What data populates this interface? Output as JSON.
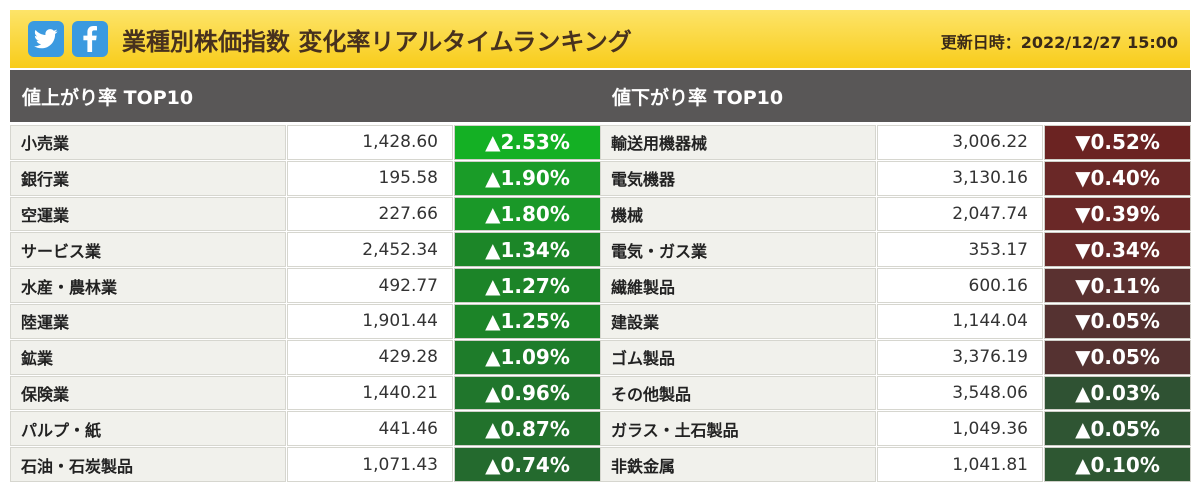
{
  "header": {
    "title": "業種別株価指数 変化率リアルタイムランキング",
    "updated_label": "更新日時：",
    "updated_value": "2022/12/27 15:00"
  },
  "colors": {
    "header_bg": "#f8cc1a",
    "panel_header_bg": "#595757",
    "name_cell_bg": "#f1f1ec",
    "value_cell_bg": "#ffffff",
    "social_button_bg": "#3b9ae0"
  },
  "icons": [
    "twitter-icon",
    "facebook-icon"
  ],
  "gainers": {
    "title": "値上がり率 TOP10",
    "rows": [
      {
        "name": "小売業",
        "value": "1,428.60",
        "change": "▲2.53%",
        "color": "#14b024"
      },
      {
        "name": "銀行業",
        "value": "195.58",
        "change": "▲1.90%",
        "color": "#1a9c28"
      },
      {
        "name": "空運業",
        "value": "227.66",
        "change": "▲1.80%",
        "color": "#1a9828"
      },
      {
        "name": "サービス業",
        "value": "2,452.34",
        "change": "▲1.34%",
        "color": "#1c8628"
      },
      {
        "name": "水産・農林業",
        "value": "492.77",
        "change": "▲1.27%",
        "color": "#1c8428"
      },
      {
        "name": "陸運業",
        "value": "1,901.44",
        "change": "▲1.25%",
        "color": "#1c8428"
      },
      {
        "name": "鉱業",
        "value": "429.28",
        "change": "▲1.09%",
        "color": "#1e7c2a"
      },
      {
        "name": "保険業",
        "value": "1,440.21",
        "change": "▲0.96%",
        "color": "#20762c"
      },
      {
        "name": "パルプ・紙",
        "value": "441.46",
        "change": "▲0.87%",
        "color": "#22722c"
      },
      {
        "name": "石油・石炭製品",
        "value": "1,071.43",
        "change": "▲0.74%",
        "color": "#246a2e"
      }
    ]
  },
  "losers": {
    "title": "値下がり率 TOP10",
    "rows": [
      {
        "name": "輸送用機器械",
        "value": "3,006.22",
        "change": "▼0.52%",
        "color": "#6b2322"
      },
      {
        "name": "電気機器",
        "value": "3,130.16",
        "change": "▼0.40%",
        "color": "#6a2827"
      },
      {
        "name": "機械",
        "value": "2,047.74",
        "change": "▼0.39%",
        "color": "#6a2827"
      },
      {
        "name": "電気・ガス業",
        "value": "353.17",
        "change": "▼0.34%",
        "color": "#672a29"
      },
      {
        "name": "繊維製品",
        "value": "600.16",
        "change": "▼0.11%",
        "color": "#5a3130"
      },
      {
        "name": "建設業",
        "value": "1,144.04",
        "change": "▼0.05%",
        "color": "#553231"
      },
      {
        "name": "ゴム製品",
        "value": "3,376.19",
        "change": "▼0.05%",
        "color": "#553231"
      },
      {
        "name": "その他製品",
        "value": "3,548.06",
        "change": "▲0.03%",
        "color": "#2f5233"
      },
      {
        "name": "ガラス・土石製品",
        "value": "1,049.36",
        "change": "▲0.05%",
        "color": "#2f5533"
      },
      {
        "name": "非鉄金属",
        "value": "1,041.81",
        "change": "▲0.10%",
        "color": "#2e5732"
      }
    ]
  }
}
